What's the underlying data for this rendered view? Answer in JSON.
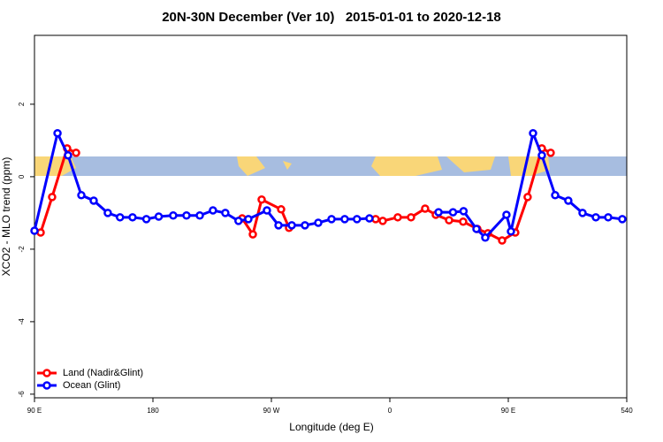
{
  "chart_data": {
    "type": "line",
    "title": "20N-30N December (Ver 10)   2015-01-01 to 2020-12-18",
    "x_label": "Longitude (deg E)",
    "y_label": "XCO2 - MLO trend (ppm)",
    "xlim": [
      90,
      540
    ],
    "xticks": [
      {
        "value": 90,
        "label": "90 E"
      },
      180,
      {
        "value": 270,
        "label": "90 W"
      },
      {
        "value": 360,
        "label": "0"
      },
      {
        "value": 450,
        "label": "90 E"
      },
      540
    ],
    "ylim": [
      -6.1,
      3.9
    ],
    "yticks": [
      2,
      0,
      -2,
      -4,
      -6
    ],
    "legend": "bottom-left",
    "series": [
      {
        "name": "Land (Nadir&Glint)",
        "color": "#ff0000",
        "x": [
          94.7,
          103.4,
          114.8,
          121.6,
          null,
          247.8,
          255.9,
          262.6,
          277.4,
          283.4,
          null,
          349.2,
          354.6,
          366,
          376.1,
          386.8,
          394.9,
          405,
          415.7,
          426.5,
          434.5,
          445.3,
          455.3,
          464.7,
          475.5,
          482.2
        ],
        "values": [
          -1.54,
          -0.56,
          0.78,
          0.66,
          null,
          -1.15,
          -1.59,
          -0.63,
          -0.9,
          -1.41,
          null,
          -1.17,
          -1.22,
          -1.12,
          -1.12,
          -0.88,
          -1.05,
          -1.2,
          -1.24,
          -1.44,
          -1.56,
          -1.76,
          -1.54,
          -0.56,
          0.78,
          0.66
        ]
      },
      {
        "name": "Ocean (Glint)",
        "color": "#0000ff",
        "x": [
          90,
          107.5,
          115.5,
          125.6,
          135,
          145.7,
          155,
          164.5,
          175,
          184.4,
          195.4,
          205.5,
          215.6,
          225.6,
          235,
          245,
          252.5,
          266.6,
          275.4,
          285.5,
          295.5,
          305.6,
          315.7,
          325.7,
          335,
          344.5,
          null,
          397,
          408,
          416,
          425.8,
          432.5,
          448.6,
          452,
          468.8,
          475.5,
          485.6,
          495.6,
          506.4,
          516.5,
          525.9,
          536.6
        ],
        "values": [
          -1.49,
          1.2,
          0.59,
          -0.51,
          -0.66,
          -1.0,
          -1.12,
          -1.12,
          -1.17,
          -1.1,
          -1.07,
          -1.07,
          -1.07,
          -0.93,
          -1.0,
          -1.22,
          -1.17,
          -0.93,
          -1.34,
          -1.34,
          -1.34,
          -1.27,
          -1.17,
          -1.17,
          -1.17,
          -1.15,
          null,
          -0.98,
          -0.98,
          -0.95,
          -1.44,
          -1.68,
          -1.05,
          -1.51,
          1.2,
          0.59,
          -0.51,
          -0.66,
          -1.0,
          -1.12,
          -1.12,
          -1.17
        ]
      }
    ]
  }
}
